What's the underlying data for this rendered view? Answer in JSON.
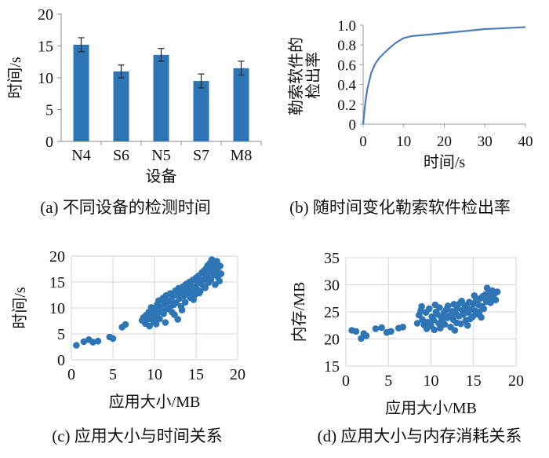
{
  "panels": [
    {
      "caption": "(a) 不同设备的检测时间",
      "chart_data": {
        "type": "bar",
        "title": "",
        "xlabel": "设备",
        "ylabel": "时间/s",
        "categories": [
          "N4",
          "S6",
          "N5",
          "S7",
          "M8"
        ],
        "values": [
          15.2,
          11.0,
          13.6,
          9.5,
          11.5
        ],
        "errors": [
          1.1,
          1.0,
          1.0,
          1.1,
          1.1
        ],
        "ylim": [
          0,
          20
        ],
        "yticks": [
          "0",
          "5",
          "10",
          "15",
          "20"
        ],
        "bar_color": "#2E75B6",
        "grid": false
      }
    },
    {
      "caption": "(b) 随时间变化勒索软件检出率",
      "chart_data": {
        "type": "line",
        "title": "",
        "xlabel": "时间/s",
        "ylabel_line1": "勒索软件的",
        "ylabel_line2": "检出率",
        "x": [
          0,
          0.5,
          1,
          2,
          3,
          4,
          5,
          6,
          8,
          10,
          12,
          15,
          20,
          25,
          30,
          35,
          40
        ],
        "y": [
          0,
          0.2,
          0.35,
          0.52,
          0.61,
          0.67,
          0.71,
          0.75,
          0.82,
          0.87,
          0.89,
          0.9,
          0.92,
          0.94,
          0.96,
          0.97,
          0.98
        ],
        "xlim": [
          0,
          40
        ],
        "ylim": [
          0,
          1.0
        ],
        "xticks": [
          "0",
          "10",
          "20",
          "30",
          "40"
        ],
        "yticks": [
          "0",
          "0.2",
          "0.4",
          "0.6",
          "0.8",
          "1.0"
        ],
        "line_color": "#4A7EBB",
        "grid": false
      }
    },
    {
      "caption": "(c) 应用大小与时间关系",
      "chart_data": {
        "type": "scatter",
        "title": "",
        "xlabel": "应用大小/MB",
        "ylabel": "时间/s",
        "xlim": [
          0,
          20
        ],
        "ylim": [
          0,
          20
        ],
        "xticks": [
          "0",
          "5",
          "10",
          "15",
          "20"
        ],
        "yticks": [
          "0",
          "5",
          "10",
          "15",
          "20"
        ],
        "point_color": "#2E75B6",
        "grid": true,
        "points": [
          [
            0.6,
            2.8
          ],
          [
            1.5,
            3.5
          ],
          [
            2.1,
            3.9
          ],
          [
            2.6,
            3.4
          ],
          [
            3.2,
            3.6
          ],
          [
            4.6,
            4.4
          ],
          [
            5.0,
            4.1
          ],
          [
            6.1,
            6.3
          ],
          [
            6.5,
            6.8
          ],
          [
            8.5,
            7.6
          ],
          [
            8.7,
            8.2
          ],
          [
            8.9,
            7.0
          ],
          [
            9.0,
            8.6
          ],
          [
            9.2,
            7.8
          ],
          [
            9.3,
            9.2
          ],
          [
            9.5,
            8.0
          ],
          [
            9.6,
            10.1
          ],
          [
            9.8,
            8.8
          ],
          [
            9.9,
            7.3
          ],
          [
            10.0,
            9.6
          ],
          [
            10.1,
            8.4
          ],
          [
            10.3,
            10.6
          ],
          [
            10.4,
            9.0
          ],
          [
            10.5,
            11.4
          ],
          [
            10.6,
            7.9
          ],
          [
            10.7,
            10.2
          ],
          [
            10.9,
            9.5
          ],
          [
            11.0,
            11.9
          ],
          [
            11.1,
            8.9
          ],
          [
            11.2,
            10.8
          ],
          [
            11.4,
            12.4
          ],
          [
            11.5,
            9.8
          ],
          [
            11.6,
            11.2
          ],
          [
            11.8,
            10.0
          ],
          [
            11.9,
            12.8
          ],
          [
            12.0,
            11.5
          ],
          [
            12.1,
            9.2
          ],
          [
            12.2,
            12.2
          ],
          [
            12.3,
            10.6
          ],
          [
            12.5,
            13.3
          ],
          [
            12.6,
            11.0
          ],
          [
            12.7,
            12.6
          ],
          [
            12.8,
            7.8
          ],
          [
            12.9,
            13.8
          ],
          [
            13.0,
            11.8
          ],
          [
            13.1,
            12.9
          ],
          [
            13.2,
            10.3
          ],
          [
            13.4,
            14.1
          ],
          [
            13.5,
            12.3
          ],
          [
            13.6,
            13.4
          ],
          [
            13.7,
            11.1
          ],
          [
            13.8,
            14.6
          ],
          [
            13.9,
            12.7
          ],
          [
            14.0,
            13.9
          ],
          [
            14.2,
            15.0
          ],
          [
            14.3,
            12.0
          ],
          [
            14.4,
            14.3
          ],
          [
            14.5,
            13.1
          ],
          [
            14.6,
            15.4
          ],
          [
            14.8,
            14.0
          ],
          [
            14.9,
            12.6
          ],
          [
            15.0,
            15.8
          ],
          [
            15.1,
            13.6
          ],
          [
            15.2,
            14.8
          ],
          [
            15.3,
            16.2
          ],
          [
            15.5,
            13.2
          ],
          [
            15.6,
            15.2
          ],
          [
            15.7,
            16.8
          ],
          [
            15.8,
            14.4
          ],
          [
            15.9,
            17.1
          ],
          [
            16.0,
            15.6
          ],
          [
            16.1,
            13.9
          ],
          [
            16.2,
            17.6
          ],
          [
            16.3,
            16.1
          ],
          [
            16.4,
            18.2
          ],
          [
            16.5,
            14.9
          ],
          [
            16.6,
            17.0
          ],
          [
            16.7,
            18.7
          ],
          [
            16.8,
            15.5
          ],
          [
            16.9,
            17.9
          ],
          [
            17.0,
            19.2
          ],
          [
            17.1,
            16.4
          ],
          [
            17.2,
            18.5
          ],
          [
            17.3,
            14.5
          ],
          [
            17.4,
            17.2
          ],
          [
            17.5,
            19.0
          ],
          [
            17.6,
            16.0
          ],
          [
            17.7,
            17.8
          ],
          [
            17.8,
            15.2
          ],
          [
            17.9,
            18.1
          ],
          [
            18.0,
            16.6
          ],
          [
            16.9,
            19.3
          ],
          [
            13.3,
            9.6
          ],
          [
            12.4,
            8.7
          ],
          [
            11.3,
            7.2
          ],
          [
            10.2,
            6.9
          ],
          [
            9.4,
            6.5
          ],
          [
            15.4,
            12.9
          ],
          [
            14.7,
            11.6
          ]
        ]
      }
    },
    {
      "caption": "(d) 应用大小与内存消耗关系",
      "chart_data": {
        "type": "scatter",
        "title": "",
        "xlabel": "应用大小/MB",
        "ylabel": "内存/MB",
        "xlim": [
          0,
          20
        ],
        "ylim": [
          15,
          35
        ],
        "xticks": [
          "0",
          "5",
          "10",
          "15",
          "20"
        ],
        "yticks": [
          "15",
          "20",
          "25",
          "30",
          "35"
        ],
        "point_color": "#2E75B6",
        "grid": true,
        "points": [
          [
            0.7,
            21.6
          ],
          [
            1.2,
            21.4
          ],
          [
            1.8,
            20.1
          ],
          [
            2.1,
            21.0
          ],
          [
            2.4,
            20.6
          ],
          [
            3.5,
            21.9
          ],
          [
            4.2,
            22.1
          ],
          [
            4.8,
            21.2
          ],
          [
            5.3,
            21.4
          ],
          [
            6.2,
            22.0
          ],
          [
            6.7,
            22.2
          ],
          [
            8.4,
            22.9
          ],
          [
            8.6,
            24.4
          ],
          [
            8.8,
            25.2
          ],
          [
            9.0,
            23.6
          ],
          [
            9.2,
            22.6
          ],
          [
            9.4,
            24.9
          ],
          [
            9.6,
            23.1
          ],
          [
            9.8,
            25.6
          ],
          [
            10.0,
            22.4
          ],
          [
            10.1,
            24.1
          ],
          [
            10.3,
            23.5
          ],
          [
            10.4,
            21.7
          ],
          [
            10.6,
            25.0
          ],
          [
            10.7,
            24.6
          ],
          [
            10.9,
            22.9
          ],
          [
            11.0,
            25.8
          ],
          [
            11.2,
            24.0
          ],
          [
            11.3,
            23.2
          ],
          [
            11.5,
            24.8
          ],
          [
            11.6,
            22.7
          ],
          [
            11.8,
            25.4
          ],
          [
            11.9,
            23.9
          ],
          [
            12.0,
            26.1
          ],
          [
            12.2,
            24.3
          ],
          [
            12.3,
            22.2
          ],
          [
            12.5,
            25.1
          ],
          [
            12.6,
            23.6
          ],
          [
            12.7,
            26.4
          ],
          [
            12.9,
            24.7
          ],
          [
            13.0,
            23.0
          ],
          [
            13.1,
            25.7
          ],
          [
            13.3,
            24.2
          ],
          [
            13.4,
            26.6
          ],
          [
            13.5,
            22.8
          ],
          [
            13.7,
            25.3
          ],
          [
            13.8,
            24.5
          ],
          [
            14.0,
            26.2
          ],
          [
            14.1,
            23.4
          ],
          [
            14.2,
            25.9
          ],
          [
            14.4,
            24.9
          ],
          [
            14.5,
            26.8
          ],
          [
            14.6,
            23.7
          ],
          [
            14.8,
            25.5
          ],
          [
            14.9,
            24.1
          ],
          [
            15.0,
            26.5
          ],
          [
            15.2,
            25.2
          ],
          [
            15.3,
            27.1
          ],
          [
            15.4,
            24.6
          ],
          [
            15.6,
            26.3
          ],
          [
            15.7,
            25.0
          ],
          [
            15.8,
            27.5
          ],
          [
            16.0,
            26.0
          ],
          [
            16.1,
            27.9
          ],
          [
            16.2,
            25.6
          ],
          [
            16.4,
            28.2
          ],
          [
            16.5,
            26.9
          ],
          [
            16.6,
            29.4
          ],
          [
            16.8,
            27.4
          ],
          [
            16.9,
            28.6
          ],
          [
            17.0,
            26.7
          ],
          [
            17.2,
            28.9
          ],
          [
            17.3,
            27.7
          ],
          [
            17.5,
            28.4
          ],
          [
            17.6,
            27.2
          ],
          [
            17.8,
            28.7
          ],
          [
            9.5,
            21.9
          ],
          [
            11.1,
            22.0
          ],
          [
            12.8,
            21.6
          ],
          [
            14.3,
            22.5
          ],
          [
            15.9,
            24.0
          ],
          [
            10.5,
            26.3
          ],
          [
            13.6,
            27.0
          ],
          [
            15.1,
            28.0
          ],
          [
            8.9,
            26.0
          ]
        ]
      }
    }
  ]
}
